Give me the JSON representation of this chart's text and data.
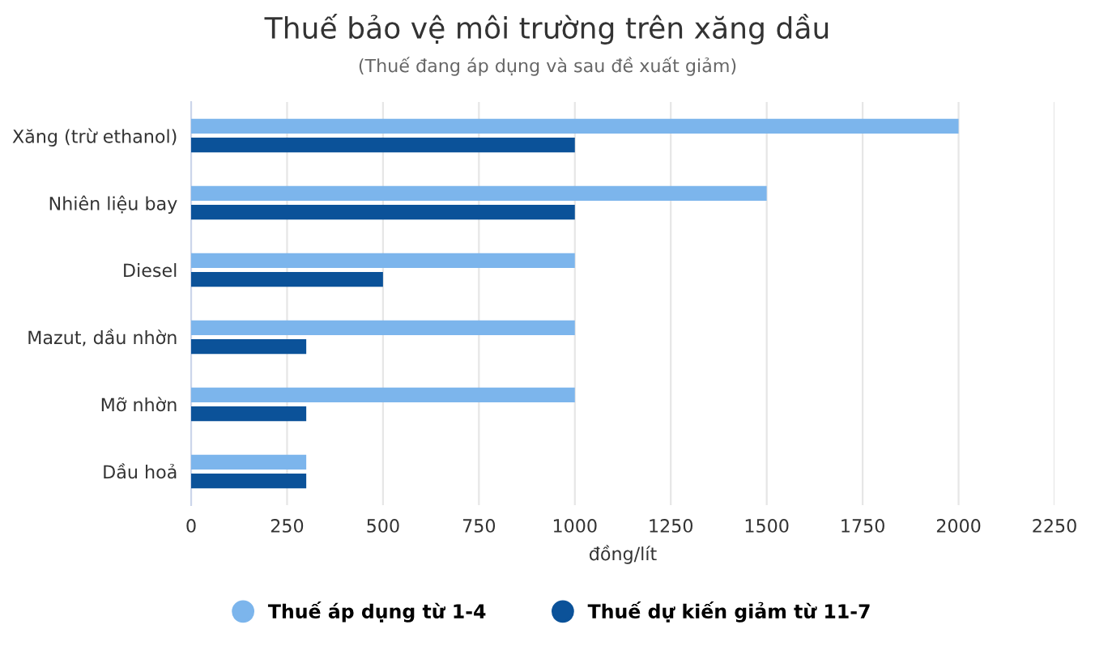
{
  "chart_data": {
    "type": "bar",
    "orientation": "horizontal",
    "title": "Thuế bảo vệ môi trường trên xăng dầu",
    "subtitle": "(Thuế đang áp dụng và sau đề xuất giảm)",
    "xlabel": "đồng/lít",
    "categories": [
      "Xăng (trừ ethanol)",
      "Nhiên liệu bay",
      "Diesel",
      "Mazut, dầu nhờn",
      "Mỡ nhờn",
      "Dầu hoả"
    ],
    "series": [
      {
        "name": "Thuế áp dụng từ 1-4",
        "color": "#7cb5ec",
        "values": [
          2000,
          1500,
          1000,
          1000,
          1000,
          300
        ]
      },
      {
        "name": "Thuế dự kiến giảm từ 11-7",
        "color": "#0b5299",
        "values": [
          1000,
          1000,
          500,
          300,
          300,
          300
        ]
      }
    ],
    "xlim": [
      0,
      2250
    ],
    "xticks": [
      0,
      250,
      500,
      750,
      1000,
      1250,
      1500,
      1750,
      2000,
      2250
    ],
    "grid": "x",
    "legend": "bottom",
    "marker": "circle"
  }
}
